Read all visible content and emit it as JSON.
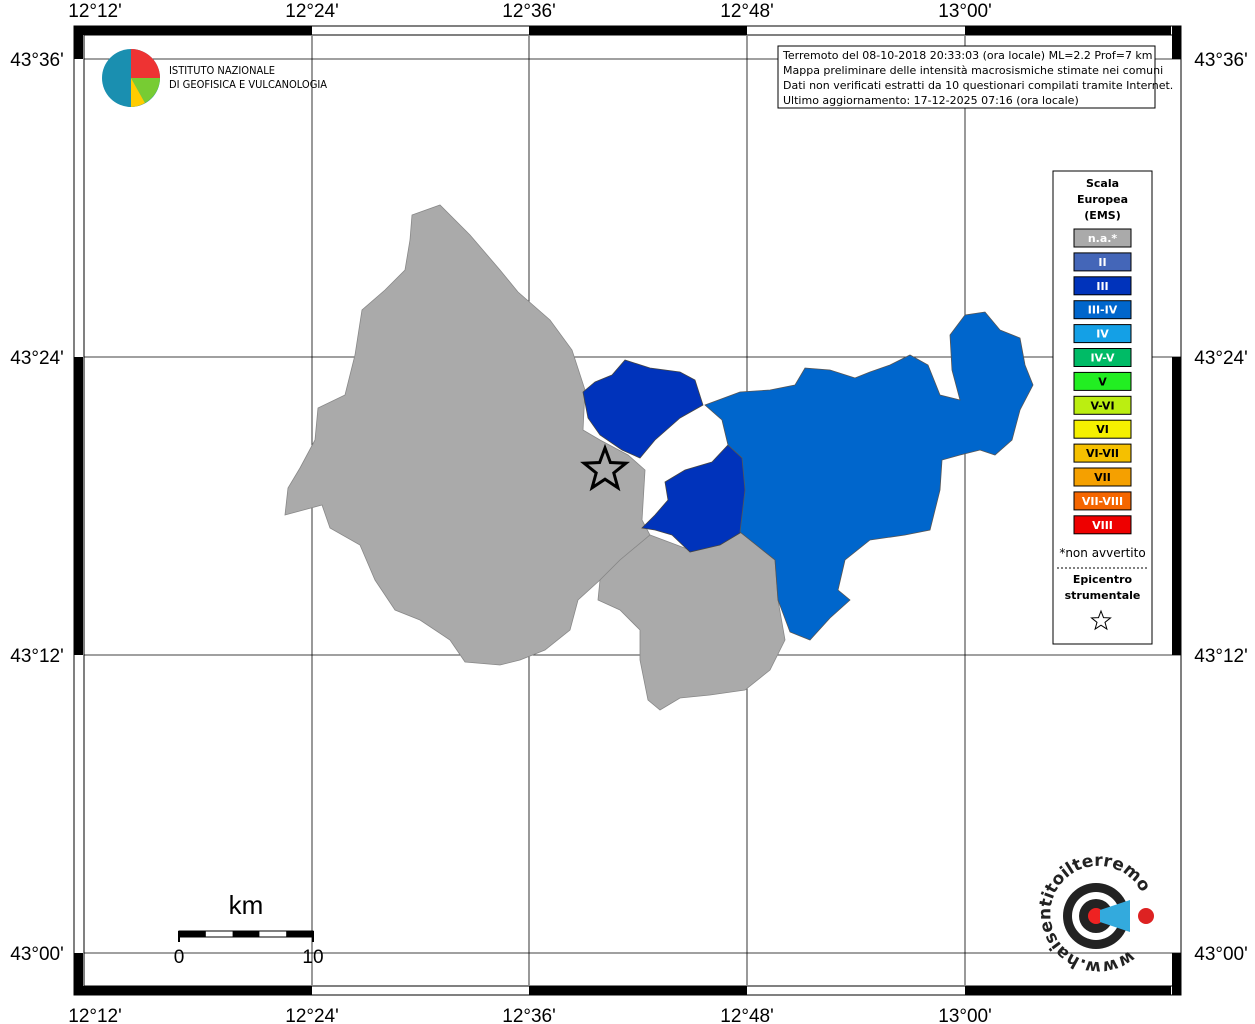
{
  "map": {
    "lon_labels": [
      "12°12'",
      "12°24'",
      "12°36'",
      "12°48'",
      "13°00'"
    ],
    "lat_labels": [
      "43°36'",
      "43°24'",
      "43°12'",
      "43°00'"
    ],
    "logo": [
      "ISTITUTO NAZIONALE",
      "DI GEOFISICA E VULCANOLOGIA"
    ],
    "info": [
      "Terremoto del 08-10-2018 20:33:03 (ora locale) ML=2.2 Prof=7 km",
      "Mappa preliminare delle intensità macrosismiche stimate nei comuni",
      "Dati non verificati estratti da 10 questionari compilati tramite Internet.",
      "Ultimo aggiornamento: 17-12-2025 07:16 (ora locale)"
    ],
    "legend": {
      "title": [
        "Scala",
        "Europea",
        "(EMS)"
      ],
      "items": [
        {
          "label": "n.a.*",
          "color": "#aaaaaa"
        },
        {
          "label": "II",
          "color": "#4466b8"
        },
        {
          "label": "III",
          "color": "#0033bb"
        },
        {
          "label": "III-IV",
          "color": "#0066cc"
        },
        {
          "label": "IV",
          "color": "#14a0e6"
        },
        {
          "label": "IV-V",
          "color": "#00bb66"
        },
        {
          "label": "V",
          "color": "#22ee22"
        },
        {
          "label": "V-VI",
          "color": "#bbee11"
        },
        {
          "label": "VI",
          "color": "#f5f000"
        },
        {
          "label": "VI-VII",
          "color": "#f5c000"
        },
        {
          "label": "VII",
          "color": "#f5a000"
        },
        {
          "label": "VII-VIII",
          "color": "#f56600"
        },
        {
          "label": "VIII",
          "color": "#ee0000"
        }
      ],
      "note": "*non avvertito",
      "epicenter": [
        "Epicentro",
        "strumentale"
      ]
    },
    "scale": {
      "unit": "km",
      "labels": [
        "0",
        "10"
      ]
    },
    "site": "www.haisentitoilterremoto.it"
  }
}
